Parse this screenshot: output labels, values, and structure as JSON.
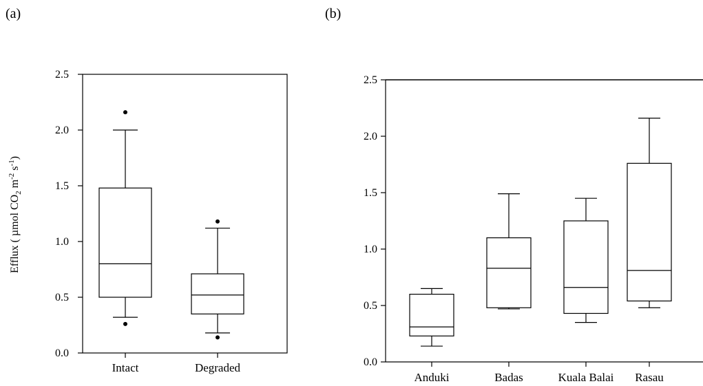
{
  "chart_data": [
    {
      "panel_label": "(a)",
      "type": "box",
      "ylabel": "Efflux ( µmol CO₂ m⁻² s⁻¹)",
      "ylabel_parts": [
        "Efflux ( µmol CO",
        "2",
        " m",
        "-2",
        " s",
        "-1",
        ")"
      ],
      "ylim": [
        0,
        2.5
      ],
      "yticks": [
        "0.0",
        "0.5",
        "1.0",
        "1.5",
        "2.0",
        "2.5"
      ],
      "categories": [
        "Intact",
        "Degraded"
      ],
      "boxes": [
        {
          "category": "Intact",
          "whisker_low": 0.32,
          "q1": 0.5,
          "median": 0.8,
          "q3": 1.48,
          "whisker_high": 2.0,
          "outliers": [
            0.26,
            2.16
          ]
        },
        {
          "category": "Degraded",
          "whisker_low": 0.18,
          "q1": 0.35,
          "median": 0.52,
          "q3": 0.71,
          "whisker_high": 1.12,
          "outliers": [
            0.14,
            1.18
          ]
        }
      ]
    },
    {
      "panel_label": "(b)",
      "type": "box",
      "ylabel": "",
      "ylim": [
        0,
        2.5
      ],
      "yticks": [
        "0.0",
        "0.5",
        "1.0",
        "1.5",
        "2.0",
        "2.5"
      ],
      "categories": [
        "Anduki",
        "Badas",
        "Kuala Balai",
        "Rasau"
      ],
      "boxes": [
        {
          "category": "Anduki",
          "whisker_low": 0.14,
          "q1": 0.23,
          "median": 0.31,
          "q3": 0.6,
          "whisker_high": 0.65,
          "outliers": []
        },
        {
          "category": "Badas",
          "whisker_low": 0.47,
          "q1": 0.48,
          "median": 0.83,
          "q3": 1.1,
          "whisker_high": 1.49,
          "outliers": []
        },
        {
          "category": "Kuala Balai",
          "whisker_low": 0.35,
          "q1": 0.43,
          "median": 0.66,
          "q3": 1.25,
          "whisker_high": 1.45,
          "outliers": []
        },
        {
          "category": "Rasau",
          "whisker_low": 0.48,
          "q1": 0.54,
          "median": 0.81,
          "q3": 1.76,
          "whisker_high": 2.16,
          "outliers": []
        }
      ]
    }
  ]
}
